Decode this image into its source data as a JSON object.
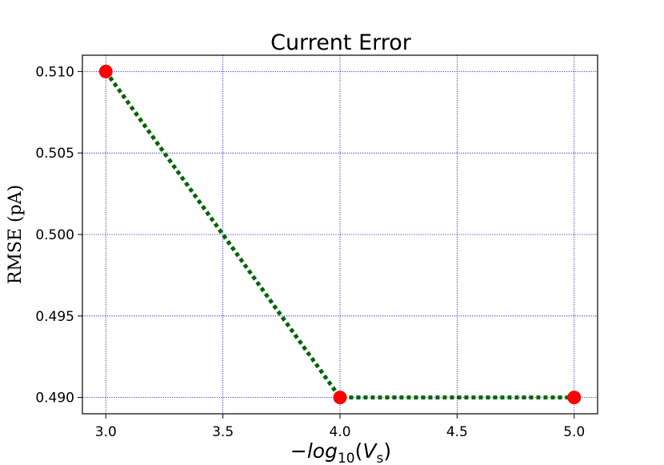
{
  "chart_data": {
    "type": "line",
    "title": "Current Error",
    "xlabel": {
      "minus": "−",
      "log": "log",
      "base": "10",
      "open": "(",
      "var": "V",
      "sub": "s",
      "close": ")"
    },
    "ylabel": "RMSE (pA)",
    "xlim": [
      2.9,
      5.1
    ],
    "ylim": [
      0.489,
      0.511
    ],
    "xticks": [
      3.0,
      3.5,
      4.0,
      4.5,
      5.0
    ],
    "xtick_labels": [
      "3.0",
      "3.5",
      "4.0",
      "4.5",
      "5.0"
    ],
    "yticks": [
      0.49,
      0.495,
      0.5,
      0.505,
      0.51
    ],
    "ytick_labels": [
      "0.490",
      "0.495",
      "0.500",
      "0.505",
      "0.510"
    ],
    "grid": true,
    "series": [
      {
        "x": [
          3.0,
          4.0,
          5.0
        ],
        "y": [
          0.51,
          0.49,
          0.49
        ],
        "line_color": "#006400",
        "line_style": "dotted",
        "marker_color": "#ff0000"
      }
    ],
    "grid_color": "#0000cc"
  }
}
